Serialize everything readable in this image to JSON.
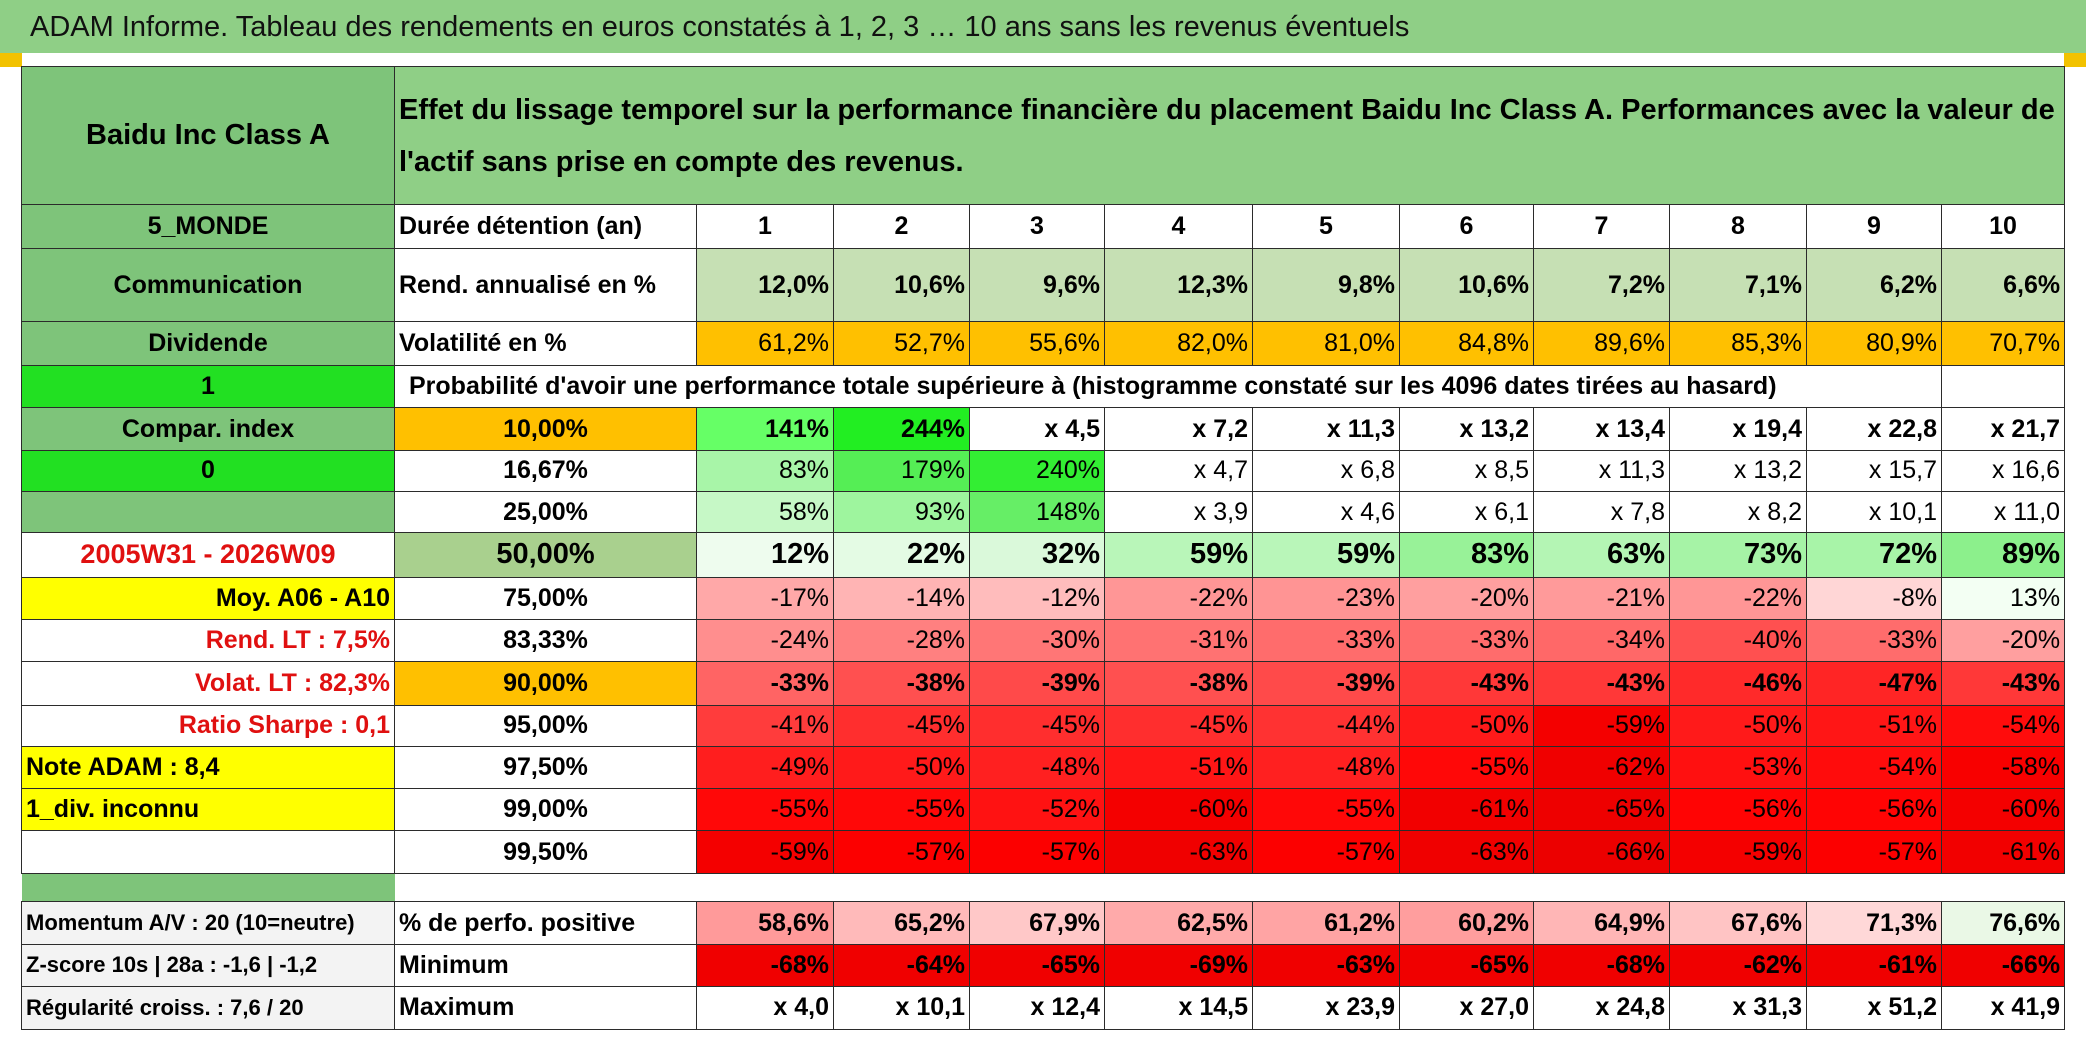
{
  "title": "ADAM Informe. Tableau des rendements en euros constatés à 1, 2, 3 … 10 ans sans les revenus éventuels",
  "sidebar": {
    "asset_name": "Baidu Inc Class A",
    "region": "5_MONDE",
    "sector": "Communication",
    "income_type": "Dividende",
    "flag_1": "1",
    "compar_index_label": "Compar. index",
    "flag_0": "0",
    "period": "2005W31 - 2026W09",
    "moy_label": "Moy. A06 - A10",
    "rend_lt": "Rend. LT :   7,5%",
    "volat_lt": "Volat. LT :   82,3%",
    "ratio_sharpe": "Ratio Sharpe :    0,1",
    "note_adam": "Note ADAM : 8,4",
    "div_info": "1_div. inconnu",
    "momentum": "Momentum A/V : 20 (10=neutre)",
    "zscore": "Z-score 10s | 28a : -1,6 | -1,2",
    "regularite": "Régularité croiss. : 7,6 / 20"
  },
  "header": {
    "description": "Effet du lissage temporel sur la performance financière du placement Baidu Inc Class A. Performances avec la valeur de l'actif sans prise en compte des revenus.",
    "duration_label": "Durée détention (an)",
    "years": [
      "1",
      "2",
      "3",
      "4",
      "5",
      "6",
      "7",
      "8",
      "9",
      "10"
    ]
  },
  "rendement": {
    "label": "Rend. annualisé en %",
    "values": [
      "12,0%",
      "10,6%",
      "9,6%",
      "12,3%",
      "9,8%",
      "10,6%",
      "7,2%",
      "7,1%",
      "6,2%",
      "6,6%"
    ]
  },
  "volatilite": {
    "label": "Volatilité en %",
    "values": [
      "61,2%",
      "52,7%",
      "55,6%",
      "82,0%",
      "81,0%",
      "84,8%",
      "89,6%",
      "85,3%",
      "80,9%",
      "70,7%"
    ]
  },
  "probability_title": "Probabilité d'avoir une performance totale supérieure à (histogramme constaté sur les 4096 dates tirées au hasard)",
  "prob_rows": [
    {
      "pct": "10,00%",
      "values": [
        "141%",
        "244%",
        "x 4,5",
        "x 7,2",
        "x 11,3",
        "x 13,2",
        "x 13,4",
        "x 19,4",
        "x 22,8",
        "x 21,7"
      ],
      "colors": [
        "#66ff66",
        "#22ee22",
        "#ffffff",
        "#ffffff",
        "#ffffff",
        "#ffffff",
        "#ffffff",
        "#ffffff",
        "#ffffff",
        "#ffffff"
      ]
    },
    {
      "pct": "16,67%",
      "values": [
        "83%",
        "179%",
        "240%",
        "x 4,7",
        "x 6,8",
        "x 8,5",
        "x 11,3",
        "x 13,2",
        "x 15,7",
        "x 16,6"
      ],
      "colors": [
        "#a8f5a8",
        "#55ee55",
        "#33ee33",
        "#ffffff",
        "#ffffff",
        "#ffffff",
        "#ffffff",
        "#ffffff",
        "#ffffff",
        "#ffffff"
      ]
    },
    {
      "pct": "25,00%",
      "values": [
        "58%",
        "93%",
        "148%",
        "x 3,9",
        "x 4,6",
        "x 6,1",
        "x 7,8",
        "x 8,2",
        "x 10,1",
        "x 11,0"
      ],
      "colors": [
        "#c6f8c6",
        "#9ef59e",
        "#66ee66",
        "#ffffff",
        "#ffffff",
        "#ffffff",
        "#ffffff",
        "#ffffff",
        "#ffffff",
        "#ffffff"
      ]
    },
    {
      "pct": "50,00%",
      "values": [
        "12%",
        "22%",
        "32%",
        "59%",
        "59%",
        "83%",
        "63%",
        "73%",
        "72%",
        "89%"
      ],
      "colors": [
        "#eefcee",
        "#e4fbe4",
        "#daf9da",
        "#b9f6b9",
        "#b9f6b9",
        "#98f298",
        "#b4f5b4",
        "#a6f3a6",
        "#a8f4a8",
        "#8cf08c"
      ]
    },
    {
      "pct": "75,00%",
      "values": [
        "-17%",
        "-14%",
        "-12%",
        "-22%",
        "-23%",
        "-20%",
        "-21%",
        "-22%",
        "-8%",
        "13%"
      ],
      "colors": [
        "#ffa8a8",
        "#ffb4b4",
        "#ffbcbc",
        "#ff9696",
        "#ff9494",
        "#ff9f9f",
        "#ff9a9a",
        "#ff9696",
        "#ffd6d6",
        "#f3fff3"
      ]
    },
    {
      "pct": "83,33%",
      "values": [
        "-24%",
        "-28%",
        "-30%",
        "-31%",
        "-33%",
        "-33%",
        "-34%",
        "-40%",
        "-33%",
        "-20%"
      ],
      "colors": [
        "#ff8e8e",
        "#ff8080",
        "#ff7676",
        "#ff7272",
        "#ff6c6c",
        "#ff6c6c",
        "#ff6868",
        "#ff5050",
        "#ff6c6c",
        "#ff9f9f"
      ]
    },
    {
      "pct": "90,00%",
      "values": [
        "-33%",
        "-38%",
        "-39%",
        "-38%",
        "-39%",
        "-43%",
        "-43%",
        "-46%",
        "-47%",
        "-43%"
      ],
      "colors": [
        "#ff6464",
        "#ff5050",
        "#ff4a4a",
        "#ff5050",
        "#ff4a4a",
        "#ff3838",
        "#ff3838",
        "#ff2a2a",
        "#ff2525",
        "#ff3838"
      ]
    },
    {
      "pct": "95,00%",
      "values": [
        "-41%",
        "-45%",
        "-45%",
        "-45%",
        "-44%",
        "-50%",
        "-59%",
        "-50%",
        "-51%",
        "-54%"
      ],
      "colors": [
        "#ff3c3c",
        "#ff2e2e",
        "#ff2e2e",
        "#ff2e2e",
        "#ff3232",
        "#ff1a1a",
        "#f40000",
        "#ff1a1a",
        "#ff1616",
        "#ff0c0c"
      ]
    },
    {
      "pct": "97,50%",
      "values": [
        "-49%",
        "-50%",
        "-48%",
        "-51%",
        "-48%",
        "-55%",
        "-62%",
        "-53%",
        "-54%",
        "-58%"
      ],
      "colors": [
        "#ff1e1e",
        "#ff1a1a",
        "#ff2020",
        "#ff1616",
        "#ff2020",
        "#ff0808",
        "#f00000",
        "#ff1010",
        "#ff0c0c",
        "#f80000"
      ]
    },
    {
      "pct": "99,00%",
      "values": [
        "-55%",
        "-55%",
        "-52%",
        "-60%",
        "-55%",
        "-61%",
        "-65%",
        "-56%",
        "-56%",
        "-60%"
      ],
      "colors": [
        "#ff0808",
        "#ff0808",
        "#ff1212",
        "#f40000",
        "#ff0808",
        "#f20000",
        "#ee0000",
        "#ff0404",
        "#ff0404",
        "#f40000"
      ]
    },
    {
      "pct": "99,50%",
      "values": [
        "-59%",
        "-57%",
        "-57%",
        "-63%",
        "-57%",
        "-63%",
        "-66%",
        "-59%",
        "-57%",
        "-61%"
      ],
      "colors": [
        "#f40000",
        "#fc0000",
        "#fc0000",
        "#f00000",
        "#fc0000",
        "#f00000",
        "#ec0000",
        "#f40000",
        "#fc0000",
        "#f20000"
      ]
    }
  ],
  "footer": {
    "positive_label": "% de perfo. positive",
    "positive_values": [
      "58,6%",
      "65,2%",
      "67,9%",
      "62,5%",
      "61,2%",
      "60,2%",
      "64,9%",
      "67,6%",
      "71,3%",
      "76,6%"
    ],
    "positive_colors": [
      "#ff9a9a",
      "#ffbaba",
      "#ffc8c8",
      "#ffaaaa",
      "#ffa4a4",
      "#ff9e9e",
      "#ffb6b6",
      "#ffc4c4",
      "#ffd8d8",
      "#eaf8e6"
    ],
    "minimum_label": "Minimum",
    "minimum_values": [
      "-68%",
      "-64%",
      "-65%",
      "-69%",
      "-63%",
      "-65%",
      "-68%",
      "-62%",
      "-61%",
      "-66%"
    ],
    "maximum_label": "Maximum",
    "maximum_values": [
      "x 4,0",
      "x 10,1",
      "x 12,4",
      "x 14,5",
      "x 23,9",
      "x 27,0",
      "x 24,8",
      "x 31,3",
      "x 51,2",
      "x 41,9"
    ]
  },
  "colors": {
    "header_green": "#8fcf86",
    "side_green": "#7ec47a",
    "bright_green": "#22e022",
    "rend_green": "#c6e0b4",
    "orange": "#ffc000",
    "yellow": "#ffff00",
    "min_red": "#f00000",
    "label_red": "#e01010"
  }
}
